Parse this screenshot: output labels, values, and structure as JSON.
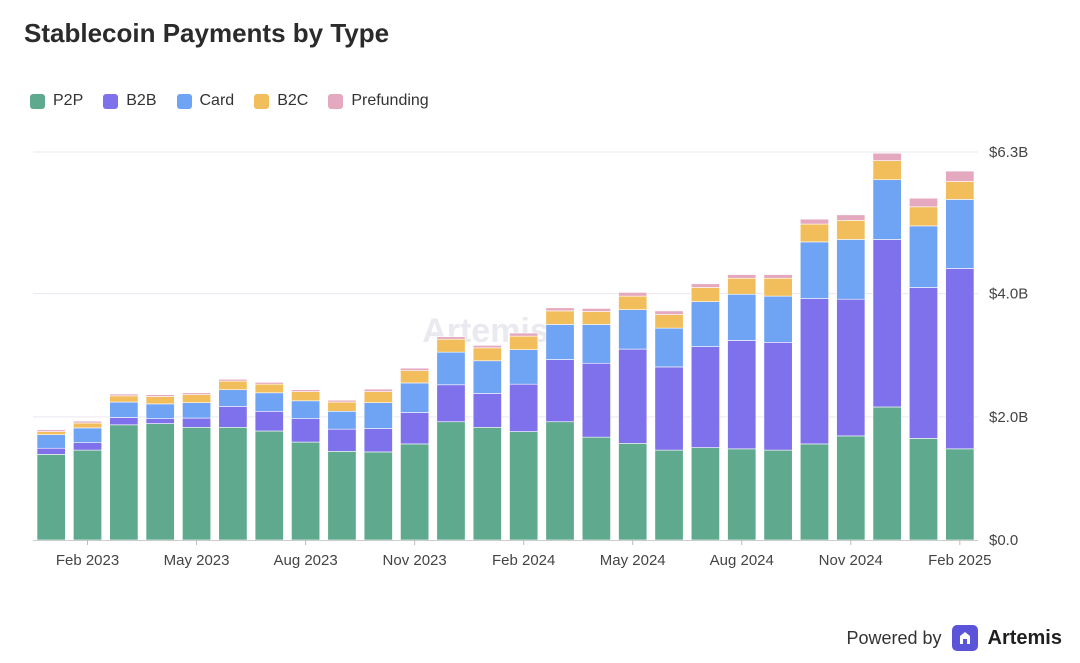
{
  "header": {
    "title": "Stablecoin Payments by Type"
  },
  "footer": {
    "powered_by": "Powered by",
    "brand": "Artemis"
  },
  "watermark": "Artemis",
  "colors": {
    "P2P": "#5faa8f",
    "B2B": "#7f70ec",
    "Card": "#6fa3f3",
    "B2C": "#f2bd5b",
    "Prefunding": "#e4a9be",
    "grid": "#ece7f1",
    "axis_text": "#444444"
  },
  "chart_data": {
    "type": "bar",
    "stacked": true,
    "title": "Stablecoin Payments by Type",
    "xlabel": "",
    "ylabel": "",
    "ylim": [
      0,
      6.3
    ],
    "y_unit": "B",
    "y_ticks": [
      {
        "value": 0,
        "label": "$0.0"
      },
      {
        "value": 2.0,
        "label": "$2.0B"
      },
      {
        "value": 4.0,
        "label": "$4.0B"
      },
      {
        "value": 6.3,
        "label": "$6.3B"
      }
    ],
    "grid": true,
    "legend_position": "top-left",
    "categories": [
      "Jan 2023",
      "Feb 2023",
      "Mar 2023",
      "Apr 2023",
      "May 2023",
      "Jun 2023",
      "Jul 2023",
      "Aug 2023",
      "Sep 2023",
      "Oct 2023",
      "Nov 2023",
      "Dec 2023",
      "Jan 2024",
      "Feb 2024",
      "Mar 2024",
      "Apr 2024",
      "May 2024",
      "Jun 2024",
      "Jul 2024",
      "Aug 2024",
      "Sep 2024",
      "Oct 2024",
      "Nov 2024",
      "Dec 2024",
      "Jan 2025",
      "Feb 2025"
    ],
    "x_tick_labels": [
      {
        "index": 1,
        "label": "Feb 2023"
      },
      {
        "index": 4,
        "label": "May 2023"
      },
      {
        "index": 7,
        "label": "Aug 2023"
      },
      {
        "index": 10,
        "label": "Nov 2023"
      },
      {
        "index": 13,
        "label": "Feb 2024"
      },
      {
        "index": 16,
        "label": "May 2024"
      },
      {
        "index": 19,
        "label": "Aug 2024"
      },
      {
        "index": 22,
        "label": "Nov 2024"
      },
      {
        "index": 25,
        "label": "Feb 2025"
      }
    ],
    "series": [
      {
        "name": "P2P",
        "values": [
          1.39,
          1.46,
          1.87,
          1.89,
          1.83,
          1.83,
          1.77,
          1.59,
          1.44,
          1.43,
          1.56,
          1.92,
          1.83,
          1.76,
          1.92,
          1.67,
          1.57,
          1.46,
          1.5,
          1.48,
          1.46,
          1.56,
          1.69,
          2.16,
          1.65,
          1.48
        ]
      },
      {
        "name": "B2B",
        "values": [
          0.1,
          0.12,
          0.12,
          0.08,
          0.15,
          0.34,
          0.32,
          0.38,
          0.36,
          0.38,
          0.51,
          0.6,
          0.55,
          0.77,
          1.01,
          1.2,
          1.53,
          1.35,
          1.64,
          1.76,
          1.75,
          2.36,
          2.22,
          2.72,
          2.45,
          2.93
        ]
      },
      {
        "name": "Card",
        "values": [
          0.22,
          0.24,
          0.25,
          0.24,
          0.25,
          0.27,
          0.3,
          0.29,
          0.29,
          0.42,
          0.48,
          0.53,
          0.53,
          0.56,
          0.57,
          0.63,
          0.64,
          0.63,
          0.73,
          0.75,
          0.75,
          0.92,
          0.97,
          0.97,
          1.0,
          1.12
        ]
      },
      {
        "name": "B2C",
        "values": [
          0.05,
          0.08,
          0.1,
          0.12,
          0.13,
          0.14,
          0.14,
          0.15,
          0.15,
          0.18,
          0.2,
          0.21,
          0.21,
          0.22,
          0.22,
          0.21,
          0.22,
          0.22,
          0.23,
          0.26,
          0.29,
          0.29,
          0.31,
          0.31,
          0.31,
          0.29
        ]
      },
      {
        "name": "Prefunding",
        "values": [
          0.03,
          0.03,
          0.03,
          0.03,
          0.03,
          0.03,
          0.03,
          0.03,
          0.03,
          0.04,
          0.04,
          0.04,
          0.04,
          0.05,
          0.05,
          0.05,
          0.06,
          0.06,
          0.06,
          0.06,
          0.06,
          0.08,
          0.09,
          0.12,
          0.14,
          0.17
        ]
      }
    ]
  }
}
